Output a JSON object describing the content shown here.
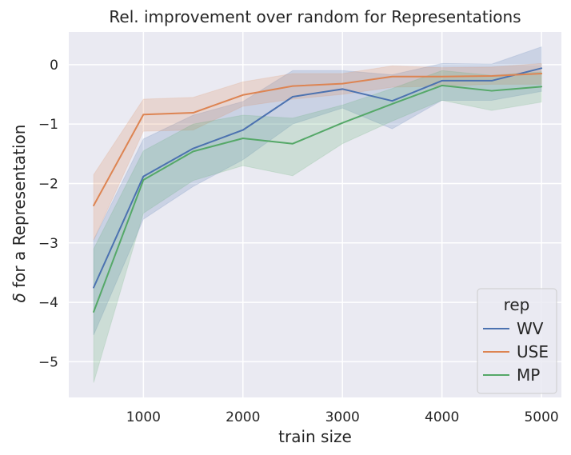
{
  "chart_data": {
    "type": "line",
    "title": "Rel. improvement over random for Representations",
    "xlabel": "train size",
    "ylabel_prefix": "δ",
    "ylabel_rest": " for a Representation",
    "x": [
      500,
      1000,
      1500,
      2000,
      2500,
      3000,
      3500,
      4000,
      4500,
      5000
    ],
    "xlim": [
      250,
      5200
    ],
    "ylim": [
      -5.6,
      0.55
    ],
    "xticks": [
      1000,
      2000,
      3000,
      4000,
      5000
    ],
    "yticks": [
      0,
      -1,
      -2,
      -3,
      -4,
      -5
    ],
    "xtick_labels": [
      "1000",
      "2000",
      "3000",
      "4000",
      "5000"
    ],
    "ytick_labels": [
      "0",
      "−1",
      "−2",
      "−3",
      "−4",
      "−5"
    ],
    "grid": true,
    "legend": {
      "title": "rep",
      "placement": "bottom-right"
    },
    "series": [
      {
        "name": "WV",
        "color": "#4c72b0",
        "values": [
          -3.75,
          -1.88,
          -1.41,
          -1.1,
          -0.54,
          -0.41,
          -0.61,
          -0.27,
          -0.27,
          -0.06
        ],
        "lower": [
          -4.55,
          -2.6,
          -2.05,
          -1.6,
          -1.0,
          -0.73,
          -1.08,
          -0.6,
          -0.6,
          -0.45
        ],
        "upper": [
          -2.95,
          -1.25,
          -0.85,
          -0.62,
          -0.1,
          -0.1,
          -0.17,
          0.02,
          0.01,
          0.3
        ]
      },
      {
        "name": "USE",
        "color": "#dd8452",
        "values": [
          -2.37,
          -0.84,
          -0.81,
          -0.51,
          -0.36,
          -0.32,
          -0.2,
          -0.2,
          -0.19,
          -0.15
        ],
        "lower": [
          -2.95,
          -1.12,
          -1.1,
          -0.7,
          -0.58,
          -0.5,
          -0.38,
          -0.36,
          -0.33,
          -0.33
        ],
        "upper": [
          -1.85,
          -0.58,
          -0.55,
          -0.29,
          -0.15,
          -0.15,
          -0.02,
          -0.05,
          -0.04,
          0.02
        ]
      },
      {
        "name": "MP",
        "color": "#55a868",
        "values": [
          -4.16,
          -1.94,
          -1.46,
          -1.24,
          -1.33,
          -0.98,
          -0.66,
          -0.35,
          -0.44,
          -0.37
        ],
        "lower": [
          -5.35,
          -2.5,
          -1.95,
          -1.7,
          -1.87,
          -1.33,
          -0.95,
          -0.6,
          -0.77,
          -0.63
        ],
        "upper": [
          -3.1,
          -1.45,
          -1.0,
          -0.85,
          -0.9,
          -0.68,
          -0.4,
          -0.1,
          -0.18,
          -0.12
        ]
      }
    ]
  }
}
